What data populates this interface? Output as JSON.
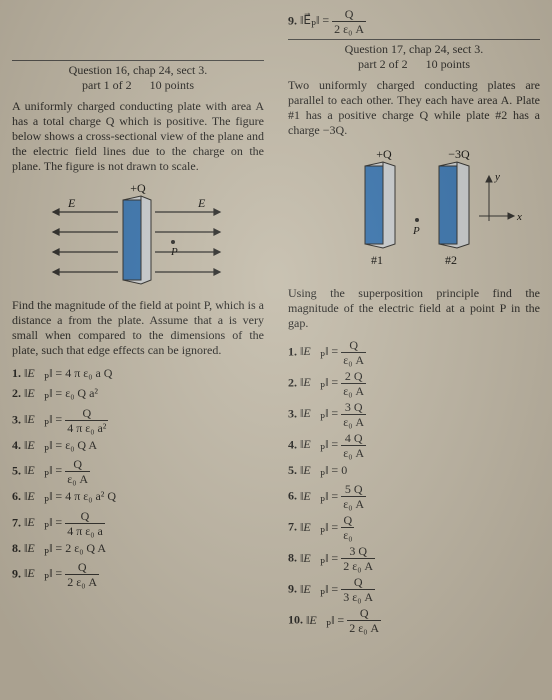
{
  "q16": {
    "header_line1": "Question 16, chap 24, sect 3.",
    "header_line2": "part 1 of 2   10 points",
    "text": "A uniformly charged conducting plate with area A has a total charge Q which is positive. The figure below shows a cross-sectional view of the plane and the electric field lines due to the charge on the plane. The figure is not drawn to scale.",
    "topQ": "+Q",
    "E": "E",
    "P": "P",
    "prompt": "Find the magnitude of the field at point P, which is a distance a from the plate. Assume that a is very small when compared to the dimensions of the plate, such that edge effects can be ignored.",
    "answers": [
      "‖E⃗_P‖ = 4 π ε₀ a Q",
      "‖E⃗_P‖ = ε₀ Q a²",
      {
        "lhs": "‖E⃗_P‖ =",
        "t": "Q",
        "b": "4 π ε₀ a²"
      },
      "‖E⃗_P‖ = ε₀ Q A",
      {
        "lhs": "‖E⃗_P‖ =",
        "t": "Q",
        "b": "ε₀ A"
      },
      "‖E⃗_P‖ = 4 π ε₀ a² Q",
      {
        "lhs": "‖E⃗_P‖ =",
        "t": "Q",
        "b": "4 π ε₀ a"
      },
      "‖E⃗_P‖ = 2 ε₀ Q A",
      {
        "lhs": "‖E⃗_P‖ =",
        "t": "Q",
        "b": "2 ε₀ A"
      }
    ]
  },
  "q17": {
    "topans": {
      "lhs": "9. ‖E⃗_P‖ =",
      "t": "Q",
      "b": "2 ε₀ A"
    },
    "header_line1": "Question 17, chap 24, sect 3.",
    "header_line2": "part 2 of 2   10 points",
    "text": "Two uniformly charged conducting plates are parallel to each other. They each have area A. Plate #1 has a positive charge Q while plate #2 has a charge −3Q.",
    "pQ": "+Q",
    "mQ": "−3Q",
    "p1": "#1",
    "p2": "#2",
    "P": "P",
    "x": "x",
    "y": "y",
    "prompt": "Using the superposition principle find the magnitude of the electric field at a point P in the gap.",
    "answers": [
      {
        "lhs": "‖E⃗_P‖ =",
        "t": "Q",
        "b": "ε₀ A"
      },
      {
        "lhs": "‖E⃗_P‖ =",
        "t": "2 Q",
        "b": "ε₀ A"
      },
      {
        "lhs": "‖E⃗_P‖ =",
        "t": "3 Q",
        "b": "ε₀ A"
      },
      {
        "lhs": "‖E⃗_P‖ =",
        "t": "4 Q",
        "b": "ε₀ A"
      },
      "‖E⃗_P‖ = 0",
      {
        "lhs": "‖E⃗_P‖ =",
        "t": "5 Q",
        "b": "ε₀ A"
      },
      {
        "lhs": "‖E⃗_P‖ =",
        "t": "Q",
        "b": "ε₀"
      },
      {
        "lhs": "‖E⃗_P‖ =",
        "t": "3 Q",
        "b": "2 ε₀ A"
      },
      {
        "lhs": "‖E⃗_P‖ =",
        "t": "Q",
        "b": "3 ε₀ A"
      },
      {
        "lhs": "‖E⃗_P‖ =",
        "t": "Q",
        "b": "2 ε₀ A"
      }
    ]
  },
  "colors": {
    "plate_fill": "#2f6fb0",
    "plate_side": "#c9cdd2",
    "line": "#222222"
  }
}
